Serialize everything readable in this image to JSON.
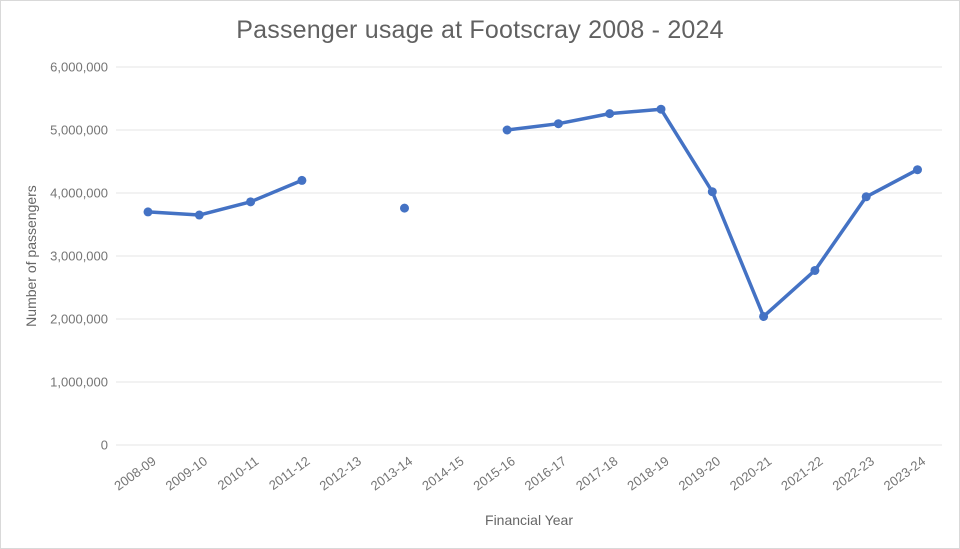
{
  "chart": {
    "title": "Passenger usage at Footscray 2008 - 2024",
    "x_axis_title": "Financial Year",
    "y_axis_title": "Number of passengers"
  },
  "chart_data": {
    "type": "line",
    "title": "Passenger usage at Footscray 2008 - 2024",
    "xlabel": "Financial Year",
    "ylabel": "Number of passengers",
    "categories": [
      "2008-09",
      "2009-10",
      "2010-11",
      "2011-12",
      "2012-13",
      "2013-14",
      "2014-15",
      "2015-16",
      "2016-17",
      "2017-18",
      "2018-19",
      "2019-20",
      "2020-21",
      "2021-22",
      "2022-23",
      "2023-24"
    ],
    "values": [
      3700000,
      3650000,
      3860000,
      4200000,
      null,
      3760000,
      null,
      5000000,
      5100000,
      5260000,
      5330000,
      4020000,
      2040000,
      2770000,
      3940000,
      4370000
    ],
    "missing_categories": [
      "2012-13",
      "2014-15"
    ],
    "ylim": [
      0,
      6000000
    ],
    "y_tick_interval": 1000000,
    "y_tick_labels": [
      "0",
      "1,000,000",
      "2,000,000",
      "3,000,000",
      "4,000,000",
      "5,000,000",
      "6,000,000"
    ],
    "grid": "horizontal",
    "legend": "none",
    "series_color": "#4472c4",
    "gridline_color": "#e6e6e6",
    "marker": "circle"
  }
}
